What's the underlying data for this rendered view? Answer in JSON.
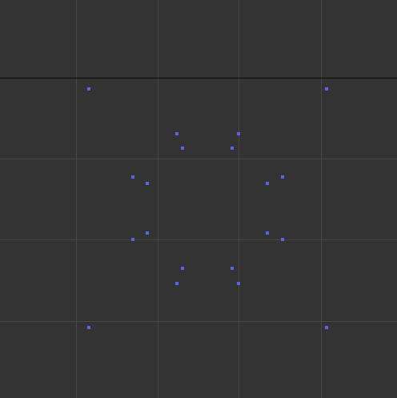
{
  "viewport": {
    "background_color": "#333333",
    "grid_color": "#474747",
    "horizon_color": "#0a0a0a",
    "vertex_color": "#5a64e6",
    "vertex_count": 20
  }
}
